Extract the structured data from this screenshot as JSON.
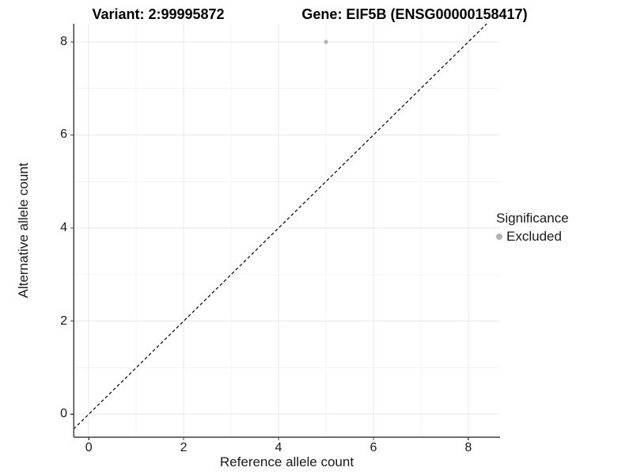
{
  "chart_data": {
    "type": "scatter",
    "title_left": "Variant: 2:99995872",
    "title_right": "Gene: EIF5B (ENSG00000158417)",
    "xlabel": "Reference allele count",
    "ylabel": "Alternative allele count",
    "xlim": [
      -0.32,
      8.67
    ],
    "ylim": [
      -0.49,
      8.39
    ],
    "xticks": [
      0,
      2,
      4,
      6,
      8
    ],
    "yticks": [
      0,
      2,
      4,
      6,
      8
    ],
    "x_minor_gridlines": [
      1,
      3,
      5,
      7
    ],
    "y_minor_gridlines": [
      1,
      3,
      5,
      7
    ],
    "grid": true,
    "legend_position": "right",
    "identity_line": {
      "slope": 1,
      "intercept": 0,
      "style": "dashed",
      "color": "#000000"
    },
    "series": [
      {
        "name": "Excluded",
        "color": "#b3b3b3",
        "points": [
          {
            "x": 5,
            "y": 8
          }
        ]
      }
    ],
    "legend": {
      "title": "Significance",
      "items": [
        {
          "label": "Excluded",
          "color": "#b3b3b3"
        }
      ]
    }
  },
  "colors": {
    "background": "#ffffff",
    "grid_major": "#e8e8e8",
    "grid_minor": "#f3f3f3",
    "axis_line": "#444444",
    "text": "#1a1a1a"
  }
}
